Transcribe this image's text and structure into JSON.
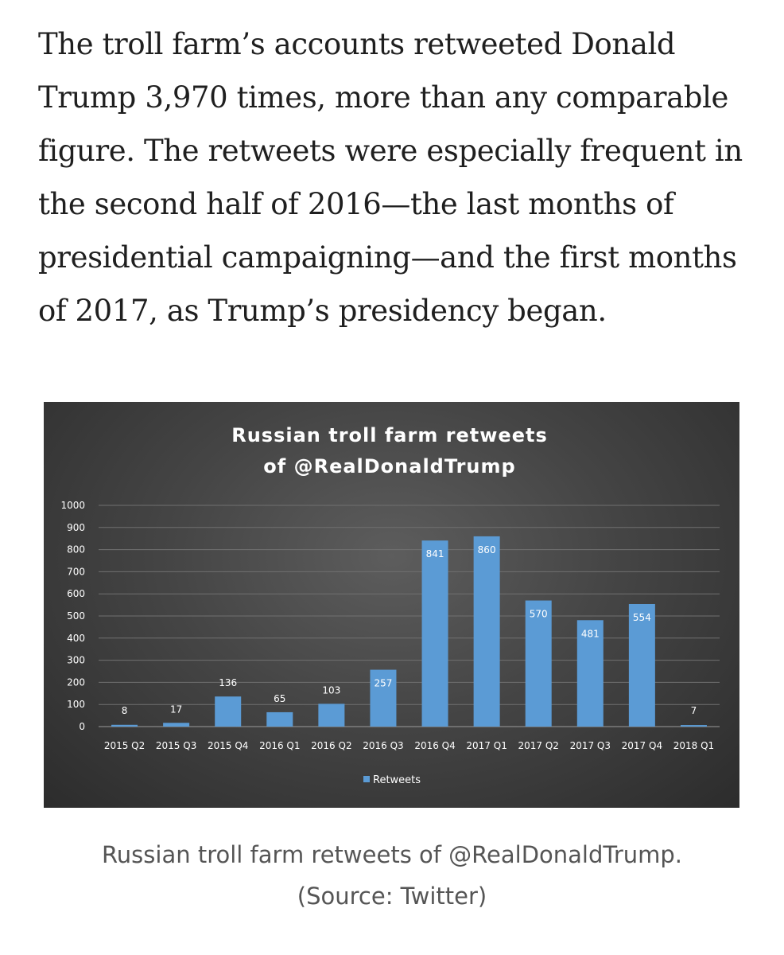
{
  "article": {
    "paragraph": "The troll farm’s accounts retweeted Donald Trump 3,970 times, more than any comparable figure. The retweets were especially frequent in the second half of 2016—the last months of presidential campaigning—and the first months of 2017, as Trump’s presidency began."
  },
  "caption": {
    "line1": "Russian troll farm retweets of @RealDonaldTrump.",
    "line2": "(Source: Twitter)"
  },
  "colors": {
    "bar": "#5b9bd5",
    "text": "#ffffff",
    "grid": "#707070"
  },
  "chart_data": {
    "type": "bar",
    "title": "Russian troll farm retweets",
    "subtitle": "of @RealDonaldTrump",
    "categories": [
      "2015 Q2",
      "2015 Q3",
      "2015 Q4",
      "2016 Q1",
      "2016 Q2",
      "2016 Q3",
      "2016 Q4",
      "2017 Q1",
      "2017 Q2",
      "2017 Q3",
      "2017 Q4",
      "2018 Q1"
    ],
    "series": [
      {
        "name": "Retweets",
        "values": [
          8,
          17,
          136,
          65,
          103,
          257,
          841,
          860,
          570,
          481,
          554,
          7
        ]
      }
    ],
    "yticks": [
      0,
      100,
      200,
      300,
      400,
      500,
      600,
      700,
      800,
      900,
      1000
    ],
    "ylim": [
      0,
      1000
    ],
    "grid": true,
    "legend": "bottom",
    "xlabel": "",
    "ylabel": ""
  }
}
